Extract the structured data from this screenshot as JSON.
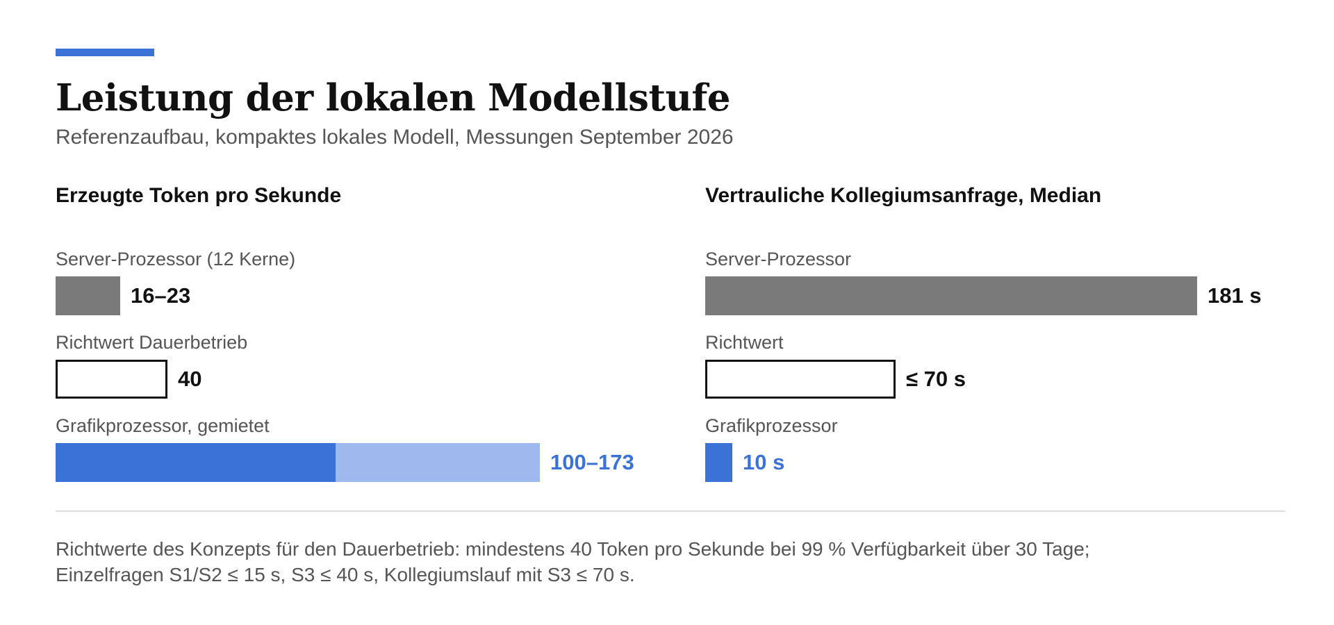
{
  "header": {
    "title": "Leistung der lokalen Modellstufe",
    "subtitle": "Referenzaufbau, kompaktes lokales Modell, Messungen September 2026"
  },
  "colors": {
    "accent": "#3a72d8",
    "accent_light": "#9fb8ee",
    "neutral": "#7a7a7a",
    "outline": "#111111"
  },
  "chart_data": [
    {
      "type": "bar",
      "orientation": "horizontal",
      "title": "Erzeugte Token pro Sekunde",
      "xlim": [
        0,
        173
      ],
      "grid": false,
      "rows": [
        {
          "label": "Server-Prozessor (12 Kerne)",
          "value_text": "16–23",
          "low": 16,
          "high": 23,
          "style": "neutral"
        },
        {
          "label": "Richtwert Dauerbetrieb",
          "value_text": "40",
          "low": 40,
          "high": 40,
          "style": "outline"
        },
        {
          "label": "Grafikprozessor, gemietet",
          "value_text": "100–173",
          "low": 100,
          "high": 173,
          "style": "accent-range"
        }
      ]
    },
    {
      "type": "bar",
      "orientation": "horizontal",
      "title": "Vertrauliche Kollegiumsanfrage, Median",
      "xlim": [
        0,
        181
      ],
      "grid": false,
      "rows": [
        {
          "label": "Server-Prozessor",
          "value_text": "181 s",
          "low": 181,
          "high": 181,
          "style": "neutral"
        },
        {
          "label": "Richtwert",
          "value_text": "≤ 70 s",
          "low": 70,
          "high": 70,
          "style": "outline"
        },
        {
          "label": "Grafikprozessor",
          "value_text": "10 s",
          "low": 10,
          "high": 10,
          "style": "accent"
        }
      ]
    }
  ],
  "footnote": {
    "line1": "Richtwerte des Konzepts für den Dauerbetrieb: mindestens 40 Token pro Sekunde bei 99 % Verfügbarkeit über 30 Tage;",
    "line2": "Einzelfragen S1/S2 ≤ 15 s, S3 ≤ 40 s, Kollegiumslauf mit S3 ≤ 70 s."
  }
}
